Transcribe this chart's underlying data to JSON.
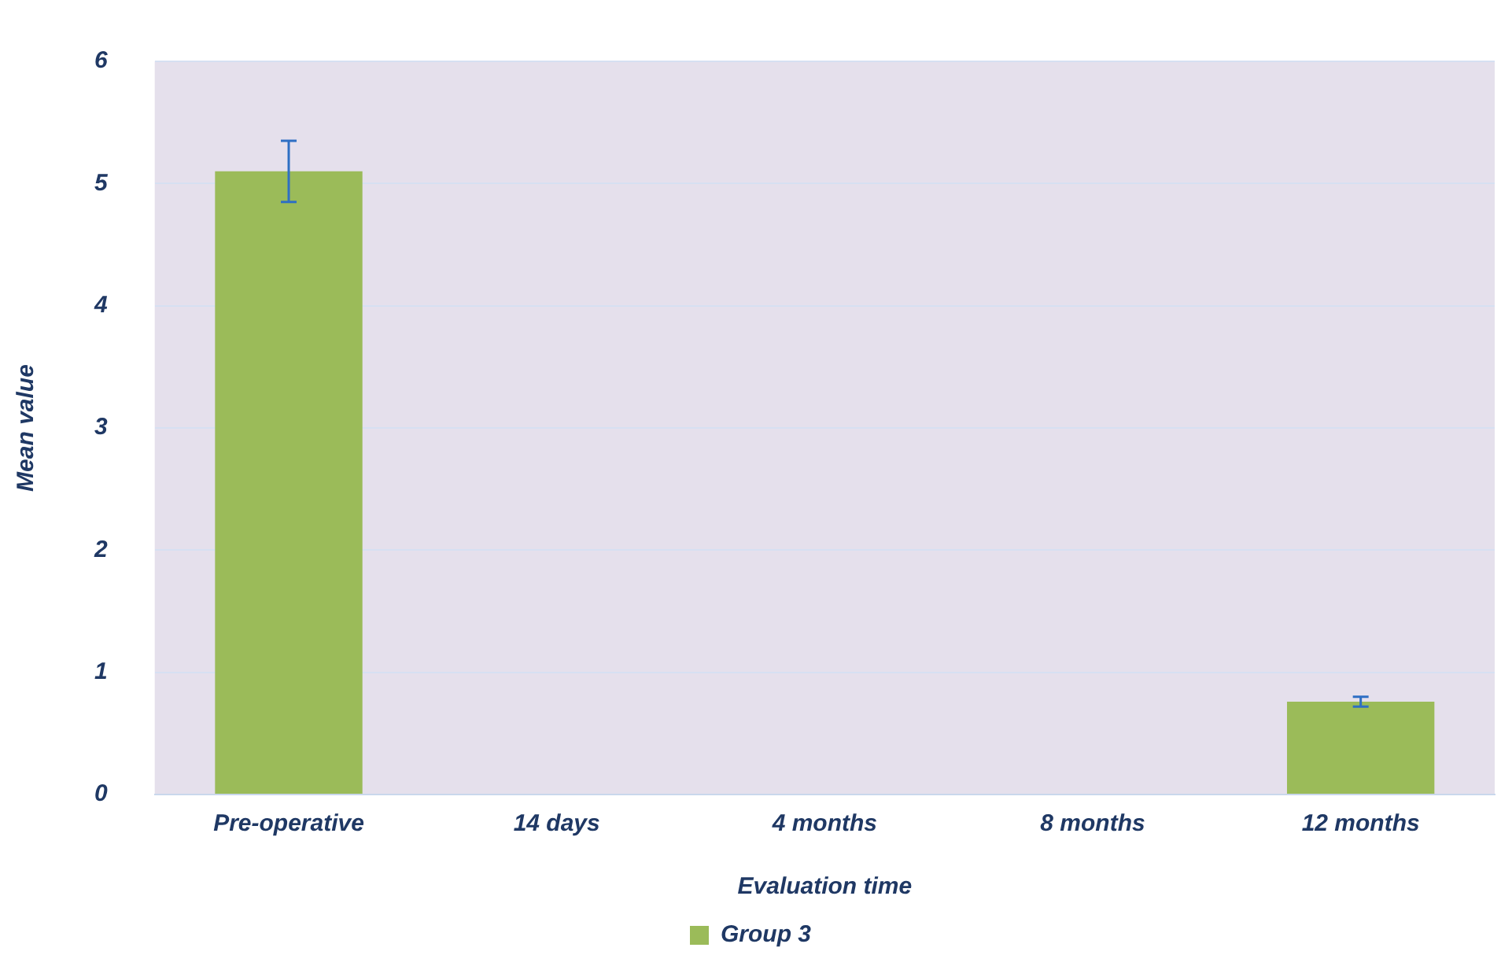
{
  "chart_data": {
    "type": "bar",
    "xlabel": "Evaluation time",
    "ylabel": "Mean value",
    "categories": [
      "Pre-operative",
      "14 days",
      "4 months",
      "8 months",
      "12 months"
    ],
    "series": [
      {
        "name": "Group 3",
        "color": "#9bbb59",
        "values": [
          5.1,
          0,
          0,
          0,
          0.76
        ],
        "errors": [
          0.25,
          0,
          0,
          0,
          0.04
        ]
      }
    ],
    "ylim": [
      0,
      6
    ],
    "yticks": [
      0,
      1,
      2,
      3,
      4,
      5,
      6
    ],
    "grid": "y",
    "legend": "bottom"
  }
}
